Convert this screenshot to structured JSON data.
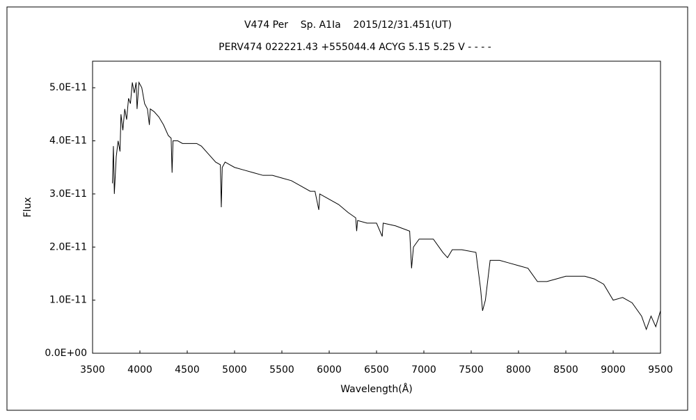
{
  "chart_data": {
    "type": "line",
    "title": "V474 Per    Sp. A1Ia    2015/12/31.451(UT)",
    "subtitle": "PERV474 022221.43 +555044.4 ACYG 5.15 5.25 V - - - -",
    "x_label": "Wavelength(Å)",
    "y_label": "Flux",
    "color": "#000000",
    "x": [
      3710,
      3720,
      3730,
      3750,
      3770,
      3790,
      3800,
      3820,
      3840,
      3860,
      3880,
      3900,
      3920,
      3940,
      3960,
      3970,
      3990,
      4020,
      4050,
      4080,
      4100,
      4110,
      4150,
      4200,
      4250,
      4300,
      4330,
      4340,
      4350,
      4400,
      4450,
      4500,
      4550,
      4600,
      4650,
      4700,
      4750,
      4800,
      4850,
      4860,
      4870,
      4900,
      4950,
      5000,
      5100,
      5200,
      5300,
      5400,
      5500,
      5600,
      5700,
      5800,
      5850,
      5890,
      5900,
      6000,
      6100,
      6200,
      6280,
      6290,
      6300,
      6400,
      6500,
      6560,
      6570,
      6700,
      6850,
      6870,
      6890,
      6950,
      7100,
      7200,
      7250,
      7300,
      7400,
      7550,
      7600,
      7620,
      7650,
      7700,
      7800,
      7900,
      8000,
      8100,
      8200,
      8300,
      8400,
      8500,
      8600,
      8700,
      8800,
      8900,
      9000,
      9100,
      9200,
      9300,
      9350,
      9400,
      9450,
      9500
    ],
    "values": [
      3.2e-11,
      3.9e-11,
      3e-11,
      3.7e-11,
      4e-11,
      3.8e-11,
      4.5e-11,
      4.2e-11,
      4.6e-11,
      4.4e-11,
      4.8e-11,
      4.7e-11,
      5.1e-11,
      4.9e-11,
      5.1e-11,
      4.6e-11,
      5.1e-11,
      5e-11,
      4.7e-11,
      4.6e-11,
      4.3e-11,
      4.6e-11,
      4.55e-11,
      4.45e-11,
      4.3e-11,
      4.1e-11,
      4.05e-11,
      3.4e-11,
      4e-11,
      4e-11,
      3.95e-11,
      3.95e-11,
      3.95e-11,
      3.95e-11,
      3.9e-11,
      3.8e-11,
      3.7e-11,
      3.6e-11,
      3.55e-11,
      2.75e-11,
      3.5e-11,
      3.6e-11,
      3.55e-11,
      3.5e-11,
      3.45e-11,
      3.4e-11,
      3.35e-11,
      3.35e-11,
      3.3e-11,
      3.25e-11,
      3.15e-11,
      3.05e-11,
      3.05e-11,
      2.7e-11,
      3e-11,
      2.9e-11,
      2.8e-11,
      2.65e-11,
      2.55e-11,
      2.3e-11,
      2.5e-11,
      2.45e-11,
      2.45e-11,
      2.2e-11,
      2.45e-11,
      2.4e-11,
      2.3e-11,
      1.6e-11,
      2e-11,
      2.15e-11,
      2.15e-11,
      1.9e-11,
      1.8e-11,
      1.95e-11,
      1.95e-11,
      1.9e-11,
      1.2e-11,
      8e-12,
      1e-11,
      1.75e-11,
      1.75e-11,
      1.7e-11,
      1.65e-11,
      1.6e-11,
      1.35e-11,
      1.35e-11,
      1.4e-11,
      1.45e-11,
      1.45e-11,
      1.45e-11,
      1.4e-11,
      1.3e-11,
      1e-11,
      1.05e-11,
      9.5e-12,
      7e-12,
      4.5e-12,
      7e-12,
      5e-12,
      8e-12
    ],
    "xlim": [
      3500,
      9500
    ],
    "xticks": [
      3500,
      4000,
      4500,
      5000,
      5500,
      6000,
      6500,
      7000,
      7500,
      8000,
      8500,
      9000,
      9500
    ],
    "ylim": [
      0,
      5.5e-11
    ],
    "yticks": [
      {
        "value": 0,
        "label": "0.0E+00"
      },
      {
        "value": 1e-11,
        "label": "1.0E-11"
      },
      {
        "value": 2e-11,
        "label": "2.0E-11"
      },
      {
        "value": 3e-11,
        "label": "3.0E-11"
      },
      {
        "value": 4e-11,
        "label": "4.0E-11"
      },
      {
        "value": 5e-11,
        "label": "5.0E-11"
      }
    ],
    "grid": false
  }
}
